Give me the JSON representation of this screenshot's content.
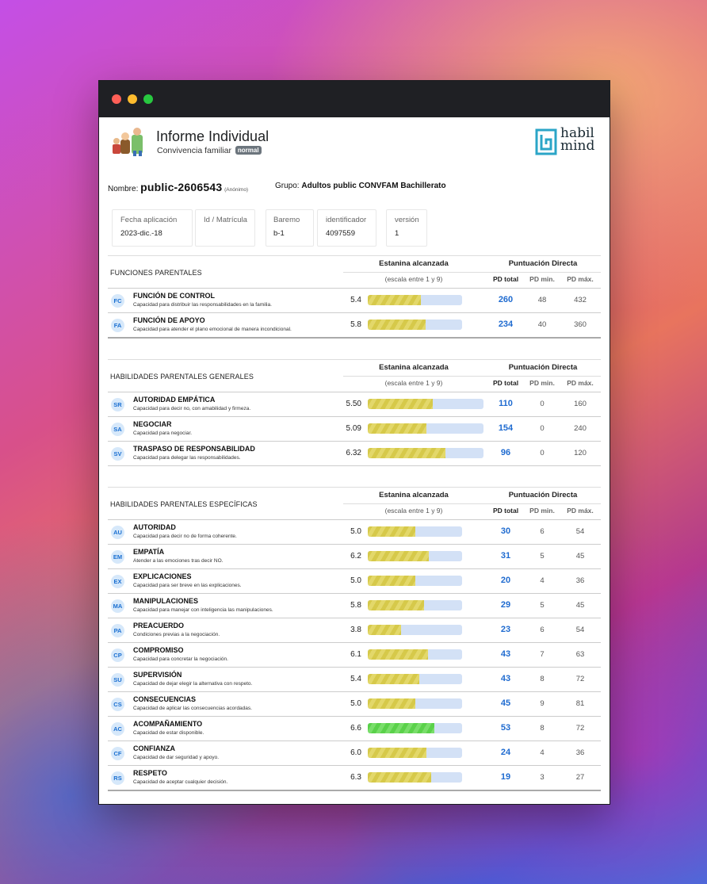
{
  "header": {
    "title": "Informe Individual",
    "subtitle": "Convivencia familiar",
    "badge": "normal",
    "logo_line1": "habil",
    "logo_line2": "mind"
  },
  "person": {
    "name_label": "Nombre:",
    "name_value": "public-2606543",
    "anon": "(Anónimo)",
    "group_label": "Grupo:",
    "group_value": "Adultos public CONVFAM Bachillerato"
  },
  "info": [
    {
      "label": "Fecha aplicación",
      "value": "2023-dic.-18"
    },
    {
      "label": "Id / Matrícula",
      "value": ""
    },
    {
      "label": "Baremo",
      "value": "b-1"
    },
    {
      "label": "identificador",
      "value": "4097559"
    },
    {
      "label": "versión",
      "value": "1"
    }
  ],
  "table_headers": {
    "estanina": "Estanina alcanzada",
    "puntuacion": "Puntuación Directa",
    "escala": "(escala entre 1 y 9)",
    "pd_total": "PD total",
    "pd_min": "PD min.",
    "pd_max": "PD máx."
  },
  "sections": [
    {
      "title": "FUNCIONES PARENTALES",
      "rows": [
        {
          "code": "FC",
          "name": "FUNCIÓN DE CONTROL",
          "desc": "Capacidad para distribuir las responsabilidades en la familia.",
          "score": "5.4",
          "fill": 0.56,
          "color": "yellow",
          "pd": "260",
          "min": "48",
          "max": "432"
        },
        {
          "code": "FA",
          "name": "FUNCIÓN DE APOYO",
          "desc": "Capacidad para atender el plano emocional de manera incondicional.",
          "score": "5.8",
          "fill": 0.61,
          "color": "yellow",
          "pd": "234",
          "min": "40",
          "max": "360"
        }
      ]
    },
    {
      "title": "HABILIDADES PARENTALES GENERALES",
      "rows": [
        {
          "code": "SR",
          "name": "AUTORIDAD EMPÁTICA",
          "desc": "Capacidad para decir no, con amabilidad y firmeza.",
          "score": "5.50",
          "fill": 0.56,
          "color": "yellow",
          "pd": "110",
          "min": "0",
          "max": "160"
        },
        {
          "code": "SA",
          "name": "NEGOCIAR",
          "desc": "Capacidad para negociar.",
          "score": "5.09",
          "fill": 0.51,
          "color": "yellow",
          "pd": "154",
          "min": "0",
          "max": "240"
        },
        {
          "code": "SV",
          "name": "TRASPASO DE RESPONSABILIDAD",
          "desc": "Capacidad para delegar las responsabilidades.",
          "score": "6.32",
          "fill": 0.67,
          "color": "yellow",
          "pd": "96",
          "min": "0",
          "max": "120"
        }
      ]
    },
    {
      "title": "HABILIDADES PARENTALES ESPECÍFICAS",
      "rows": [
        {
          "code": "AU",
          "name": "AUTORIDAD",
          "desc": "Capacidad para decir no de forma coherente.",
          "score": "5.0",
          "fill": 0.5,
          "color": "yellow",
          "pd": "30",
          "min": "6",
          "max": "54"
        },
        {
          "code": "EM",
          "name": "EMPATÍA",
          "desc": "Atender a las emociones tras decir NO.",
          "score": "6.2",
          "fill": 0.65,
          "color": "yellow",
          "pd": "31",
          "min": "5",
          "max": "45"
        },
        {
          "code": "EX",
          "name": "EXPLICACIONES",
          "desc": "Capacidad para ser breve en las explicaciones.",
          "score": "5.0",
          "fill": 0.5,
          "color": "yellow",
          "pd": "20",
          "min": "4",
          "max": "36"
        },
        {
          "code": "MA",
          "name": "MANIPULACIONES",
          "desc": "Capacidad para manejar con inteligencia las manipulaciones.",
          "score": "5.8",
          "fill": 0.6,
          "color": "yellow",
          "pd": "29",
          "min": "5",
          "max": "45"
        },
        {
          "code": "PA",
          "name": "PREACUERDO",
          "desc": "Condiciones previas a la negociación.",
          "score": "3.8",
          "fill": 0.35,
          "color": "yellow",
          "pd": "23",
          "min": "6",
          "max": "54"
        },
        {
          "code": "CP",
          "name": "COMPROMISO",
          "desc": "Capacidad para concretar la negociación.",
          "score": "6.1",
          "fill": 0.64,
          "color": "yellow",
          "pd": "43",
          "min": "7",
          "max": "63"
        },
        {
          "code": "SU",
          "name": "SUPERVISIÓN",
          "desc": "Capacidad de dejar elegir la alternativa con respeto.",
          "score": "5.4",
          "fill": 0.55,
          "color": "yellow",
          "pd": "43",
          "min": "8",
          "max": "72"
        },
        {
          "code": "CS",
          "name": "CONSECUENCIAS",
          "desc": "Capacidad de aplicar las consecuencias acordadas.",
          "score": "5.0",
          "fill": 0.5,
          "color": "yellow",
          "pd": "45",
          "min": "9",
          "max": "81"
        },
        {
          "code": "AC",
          "name": "ACOMPAÑAMIENTO",
          "desc": "Capacidad de estar disponible.",
          "score": "6.6",
          "fill": 0.71,
          "color": "green",
          "pd": "53",
          "min": "8",
          "max": "72"
        },
        {
          "code": "CF",
          "name": "CONFIANZA",
          "desc": "Capacidad de dar seguridad y apoyo.",
          "score": "6.0",
          "fill": 0.62,
          "color": "yellow",
          "pd": "24",
          "min": "4",
          "max": "36"
        },
        {
          "code": "RS",
          "name": "RESPETO",
          "desc": "Capacidad de aceptar cualquier decisión.",
          "score": "6.3",
          "fill": 0.67,
          "color": "yellow",
          "pd": "19",
          "min": "3",
          "max": "27"
        }
      ]
    }
  ]
}
